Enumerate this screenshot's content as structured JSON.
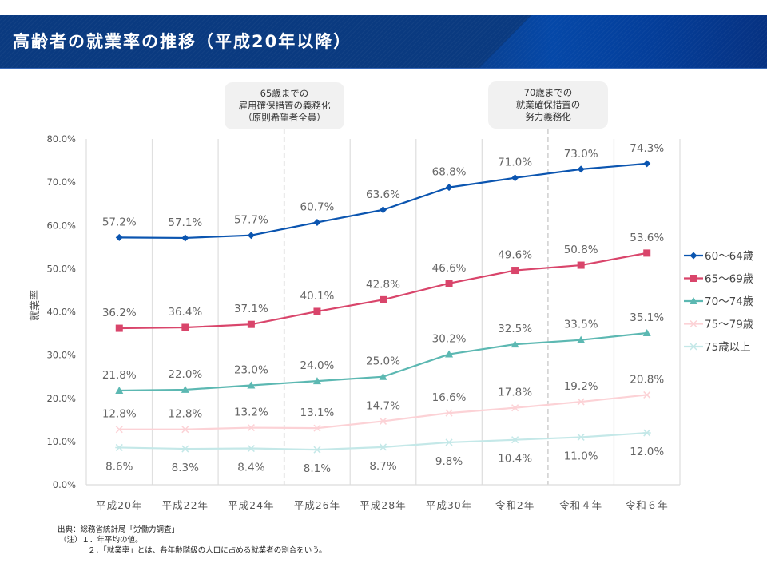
{
  "header": {
    "title": "高齢者の就業率の推移（平成20年以降）"
  },
  "callouts": [
    {
      "lines": [
        "65歳までの",
        "雇用確保措置の義務化",
        "（原則希望者全員）"
      ],
      "after_category_index": 2
    },
    {
      "lines": [
        "70歳までの",
        "就業確保措置の",
        "努力義務化"
      ],
      "after_category_index": 6
    }
  ],
  "footer": {
    "source": "出典：総務省統計局「労働力調査」",
    "note1": "（注）１．年平均の値。",
    "note2": "２．「就業率」とは、各年齢階級の人口に占める就業者の割合をいう。"
  },
  "chart_data": {
    "type": "line",
    "title": "高齢者の就業率の推移（平成20年以降）",
    "xlabel": "",
    "ylabel": "就業率",
    "ylim": [
      0,
      80
    ],
    "yticks": [
      0,
      10,
      20,
      30,
      40,
      50,
      60,
      70,
      80
    ],
    "ytick_labels": [
      "0.0%",
      "10.0%",
      "20.0%",
      "30.0%",
      "40.0%",
      "50.0%",
      "60.0%",
      "70.0%",
      "80.0%"
    ],
    "grid": "vertical",
    "legend_position": "right",
    "categories": [
      "平成20年",
      "平成22年",
      "平成24年",
      "平成26年",
      "平成28年",
      "平成30年",
      "令和2年",
      "令和４年",
      "令和６年"
    ],
    "series": [
      {
        "name": "60〜64歳",
        "color": "#0b55b0",
        "marker": "diamond",
        "values": [
          57.2,
          57.1,
          57.7,
          60.7,
          63.6,
          68.8,
          71.0,
          73.0,
          74.3
        ],
        "labels": [
          "57.2%",
          "57.1%",
          "57.7%",
          "60.7%",
          "63.6%",
          "68.8%",
          "71.0%",
          "73.0%",
          "74.3%"
        ],
        "label_pos": "above"
      },
      {
        "name": "65〜69歳",
        "color": "#d9456b",
        "marker": "square",
        "values": [
          36.2,
          36.4,
          37.1,
          40.1,
          42.8,
          46.6,
          49.6,
          50.8,
          53.6
        ],
        "labels": [
          "36.2%",
          "36.4%",
          "37.1%",
          "40.1%",
          "42.8%",
          "46.6%",
          "49.6%",
          "50.8%",
          "53.6%"
        ],
        "label_pos": "above"
      },
      {
        "name": "70〜74歳",
        "color": "#5cb8b2",
        "marker": "triangle",
        "values": [
          21.8,
          22.0,
          23.0,
          24.0,
          25.0,
          30.2,
          32.5,
          33.5,
          35.1
        ],
        "labels": [
          "21.8%",
          "22.0%",
          "23.0%",
          "24.0%",
          "25.0%",
          "30.2%",
          "32.5%",
          "33.5%",
          "35.1%"
        ],
        "label_pos": "above"
      },
      {
        "name": "75〜79歳",
        "color": "#fcd2d6",
        "marker": "x",
        "values": [
          12.8,
          12.8,
          13.2,
          13.1,
          14.7,
          16.6,
          17.8,
          19.2,
          20.8
        ],
        "labels": [
          "12.8%",
          "12.8%",
          "13.2%",
          "13.1%",
          "14.7%",
          "16.6%",
          "17.8%",
          "19.2%",
          "20.8%"
        ],
        "label_pos": "above"
      },
      {
        "name": "75歳以上",
        "color": "#c4e8e8",
        "marker": "asterisk",
        "values": [
          8.6,
          8.3,
          8.4,
          8.1,
          8.7,
          9.8,
          10.4,
          11.0,
          12.0
        ],
        "labels": [
          "8.6%",
          "8.3%",
          "8.4%",
          "8.1%",
          "8.7%",
          "9.8%",
          "10.4%",
          "11.0%",
          "12.0%"
        ],
        "label_pos": "below"
      }
    ]
  }
}
